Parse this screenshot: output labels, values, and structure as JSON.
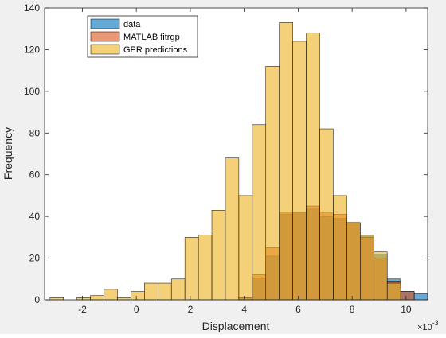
{
  "chart_data": {
    "type": "bar",
    "subtype": "histogram-overlay",
    "xlabel": "Displacement",
    "ylabel": "Frequency",
    "x_exponent_label": "×10",
    "x_exponent_power": "-3",
    "xlim": [
      -3.4,
      10.8
    ],
    "ylim": [
      0,
      140
    ],
    "xticks": [
      -2,
      0,
      2,
      4,
      6,
      8,
      10
    ],
    "yticks": [
      0,
      20,
      40,
      60,
      80,
      100,
      120,
      140
    ],
    "xtick_labels": [
      "-2",
      "0",
      "2",
      "4",
      "6",
      "8",
      "10"
    ],
    "ytick_labels": [
      "0",
      "20",
      "40",
      "60",
      "80",
      "100",
      "120",
      "140"
    ],
    "grid": false,
    "legend_position": "top-left",
    "bin_edges": [
      -3.2,
      -2.7,
      -2.2,
      -1.7,
      -1.2,
      -0.7,
      -0.2,
      0.3,
      0.8,
      1.3,
      1.8,
      2.3,
      2.8,
      3.3,
      3.8,
      4.3,
      4.8,
      5.3,
      5.8,
      6.3,
      6.8,
      7.3,
      7.8,
      8.3,
      8.8,
      9.3,
      9.8,
      10.3,
      10.8
    ],
    "series": [
      {
        "name": "data",
        "color": "#0072BD",
        "values": [
          0,
          0,
          0,
          0,
          0,
          0,
          0,
          0,
          0,
          0,
          0,
          0,
          0,
          0,
          1,
          10,
          21,
          41,
          42,
          44,
          40,
          39,
          37,
          31,
          22,
          10,
          4,
          3
        ]
      },
      {
        "name": "MATLAB fitrgp",
        "color": "#D95319",
        "values": [
          0,
          0,
          0,
          0,
          0,
          0,
          0,
          0,
          0,
          0,
          0,
          0,
          0,
          0,
          1,
          12,
          25,
          42,
          42,
          45,
          42,
          41,
          37,
          30,
          20,
          9,
          4,
          0
        ]
      },
      {
        "name": "GPR predictions",
        "color": "#EDB120",
        "values": [
          1,
          0,
          1,
          2,
          5,
          1,
          4,
          8,
          8,
          10,
          30,
          31,
          43,
          68,
          50,
          84,
          112,
          133,
          124,
          128,
          82,
          50,
          37,
          31,
          23,
          8,
          0,
          0
        ]
      }
    ]
  }
}
